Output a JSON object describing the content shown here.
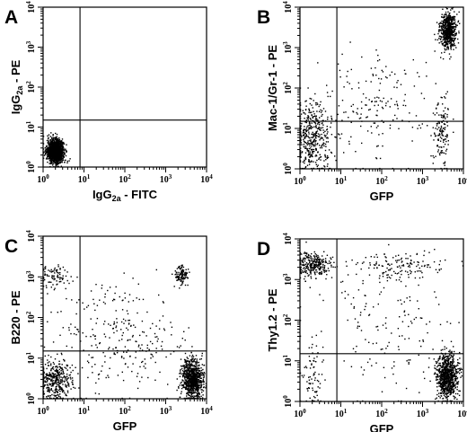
{
  "chart_data": [
    {
      "type": "scatter",
      "panel": "A",
      "xlabel": "IgG2a - FITC",
      "xlabel_parts": [
        "IgG",
        "2a",
        " - FITC"
      ],
      "ylabel": "IgG2a - PE",
      "ylabel_parts": [
        "IgG",
        "2a",
        " - PE"
      ],
      "scale": "log",
      "xlim": [
        1,
        10000
      ],
      "ylim": [
        1,
        10000
      ],
      "x_ticks": [
        "10^0",
        "10^1",
        "10^2",
        "10^3",
        "10^4"
      ],
      "y_ticks": [
        "10^0",
        "10^1",
        "10^2",
        "10^3",
        "10^4"
      ],
      "quadrant_gate": {
        "x": 8,
        "y": 15
      },
      "populations": [
        {
          "name": "double-negative",
          "x_center": 2,
          "y_center": 2.5,
          "x_spread_decades": 0.1,
          "y_spread_decades": 0.14,
          "share": 1.0
        }
      ]
    },
    {
      "type": "scatter",
      "panel": "B",
      "xlabel": "GFP",
      "ylabel": "Mac-1/Gr-1 - PE",
      "scale": "log",
      "xlim": [
        1,
        10000
      ],
      "ylim": [
        1,
        10000
      ],
      "x_ticks": [
        "10^0",
        "10^1",
        "10^2",
        "10^3",
        "10^4"
      ],
      "y_ticks": [
        "10^0",
        "10^1",
        "10^2",
        "10^3",
        "10^4"
      ],
      "quadrant_gate": {
        "x": 8,
        "y": 15
      },
      "populations": [
        {
          "name": "GFP+ Mac-1/Gr-1+",
          "x_center": 4200,
          "y_center": 2600,
          "x_spread_decades": 0.1,
          "y_spread_decades": 0.22,
          "share": 0.45
        },
        {
          "name": "GFP- low",
          "x_center": 2,
          "y_center": 6,
          "x_spread_decades": 0.25,
          "y_spread_decades": 0.45,
          "share": 0.33
        },
        {
          "name": "GFP+ low",
          "x_center": 3000,
          "y_center": 8,
          "x_spread_decades": 0.1,
          "y_spread_decades": 0.45,
          "share": 0.1
        },
        {
          "name": "intermediate",
          "x_center": 60,
          "y_center": 40,
          "x_spread_decades": 0.6,
          "y_spread_decades": 0.7,
          "share": 0.12
        }
      ]
    },
    {
      "type": "scatter",
      "panel": "C",
      "xlabel": "GFP",
      "ylabel": "B220 - PE",
      "scale": "log",
      "xlim": [
        1,
        10000
      ],
      "ylim": [
        1,
        10000
      ],
      "x_ticks": [
        "10^0",
        "10^1",
        "10^2",
        "10^3",
        "10^4"
      ],
      "y_ticks": [
        "10^0",
        "10^1",
        "10^2",
        "10^3",
        "10^4"
      ],
      "quadrant_gate": {
        "x": 8,
        "y": 15
      },
      "populations": [
        {
          "name": "GFP+ B220-",
          "x_center": 4500,
          "y_center": 3,
          "x_spread_decades": 0.13,
          "y_spread_decades": 0.25,
          "share": 0.5
        },
        {
          "name": "GFP- B220-",
          "x_center": 2,
          "y_center": 3,
          "x_spread_decades": 0.2,
          "y_spread_decades": 0.25,
          "share": 0.22
        },
        {
          "name": "GFP+ B220+",
          "x_center": 2500,
          "y_center": 1100,
          "x_spread_decades": 0.08,
          "y_spread_decades": 0.12,
          "share": 0.07
        },
        {
          "name": "GFP- B220+",
          "x_center": 2,
          "y_center": 1000,
          "x_spread_decades": 0.2,
          "y_spread_decades": 0.15,
          "share": 0.05
        },
        {
          "name": "scatter",
          "x_center": 80,
          "y_center": 30,
          "x_spread_decades": 0.7,
          "y_spread_decades": 0.7,
          "share": 0.16
        }
      ]
    },
    {
      "type": "scatter",
      "panel": "D",
      "xlabel": "GFP",
      "ylabel": "Thy1.2 - PE",
      "scale": "log",
      "xlim": [
        1,
        10000
      ],
      "ylim": [
        1,
        10000
      ],
      "x_ticks": [
        "10^0",
        "10^1",
        "10^2",
        "10^3",
        "10^4"
      ],
      "y_ticks": [
        "10^0",
        "10^1",
        "10^2",
        "10^3",
        "10^4"
      ],
      "quadrant_gate": {
        "x": 8,
        "y": 15
      },
      "populations": [
        {
          "name": "GFP+ Thy1.2-",
          "x_center": 4000,
          "y_center": 4,
          "x_spread_decades": 0.13,
          "y_spread_decades": 0.28,
          "share": 0.55
        },
        {
          "name": "GFP- Thy1.2+",
          "x_center": 2,
          "y_center": 2300,
          "x_spread_decades": 0.22,
          "y_spread_decades": 0.15,
          "share": 0.2
        },
        {
          "name": "Thy1.2+ mid",
          "x_center": 300,
          "y_center": 2000,
          "x_spread_decades": 0.6,
          "y_spread_decades": 0.18,
          "share": 0.1
        },
        {
          "name": "GFP- low",
          "x_center": 2,
          "y_center": 5,
          "x_spread_decades": 0.15,
          "y_spread_decades": 0.5,
          "share": 0.05
        },
        {
          "name": "scatter",
          "x_center": 200,
          "y_center": 60,
          "x_spread_decades": 0.8,
          "y_spread_decades": 0.8,
          "share": 0.1
        }
      ]
    }
  ]
}
